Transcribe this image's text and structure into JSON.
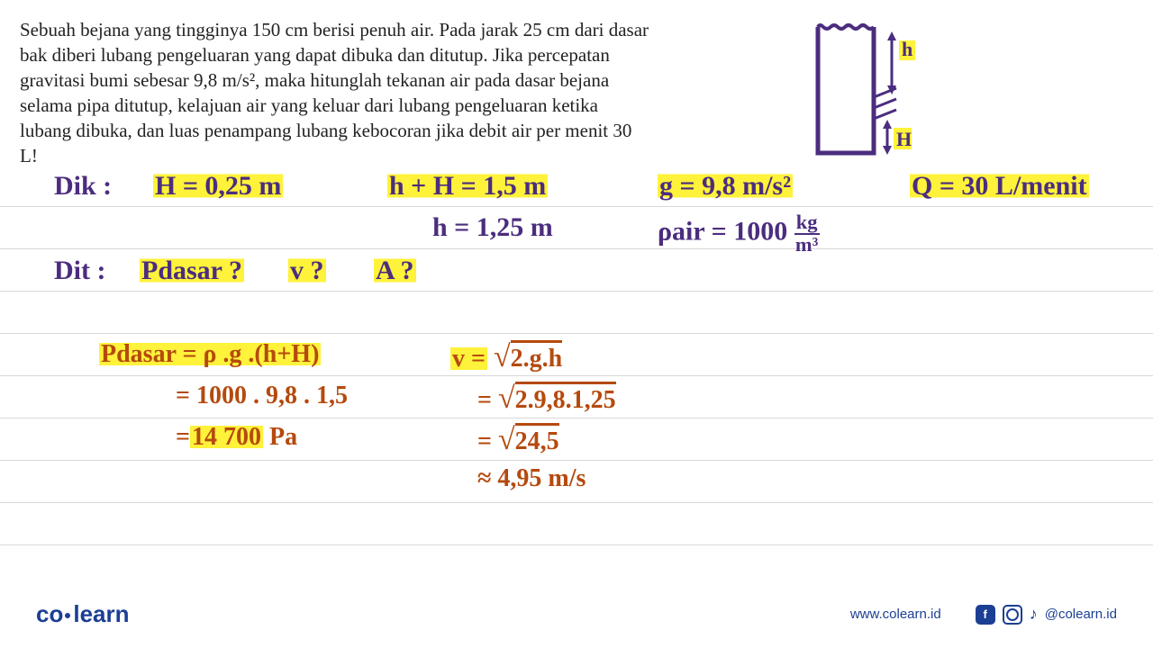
{
  "problem": "Sebuah bejana yang tingginya 150 cm berisi penuh air. Pada jarak 25 cm dari dasar bak diberi lubang pengeluaran yang dapat dibuka dan ditutup. Jika percepatan gravitasi bumi sebesar 9,8 m/s², maka hitunglah tekanan air pada dasar bejana selama pipa ditutup, kelajuan air yang keluar dari lubang pengeluaran ketika lubang dibuka, dan luas penampang lubang kebocoran jika debit air per menit 30 L!",
  "colors": {
    "purple": "#4b2d7f",
    "orange": "#b54a0e",
    "highlight": "#fef23a",
    "line": "#d8d8d8",
    "brand": "#1c3f94"
  },
  "dik": {
    "label": "Dik :",
    "H": "H = 0,25 m",
    "hH": "h + H = 1,5 m",
    "h": "h = 1,25 m",
    "g": "g = 9,8 m/s²",
    "rho": "ρair = 1000",
    "rho_unit_top": "kg",
    "rho_unit_bot": "m³",
    "Q": "Q = 30 L/menit"
  },
  "dit": {
    "label": "Dit :",
    "p": "Pdasar ?",
    "v": "v ?",
    "a": "A ?"
  },
  "calc_p": {
    "line1": "Pdasar = ρ .g .(h+H)",
    "line2": "= 1000 . 9,8 . 1,5",
    "line3_pre": "=",
    "line3": "14 700",
    "line3_post": " Pa"
  },
  "calc_v": {
    "line1_pre": "v =",
    "line1": "2.g.h",
    "line2_pre": "=",
    "line2": "2.9,8.1,25",
    "line3_pre": "=",
    "line3": "24,5",
    "line4": "≈ 4,95 m/s"
  },
  "diagram": {
    "h_label": "h",
    "H_label": "H"
  },
  "footer": {
    "logo_a": "co",
    "logo_b": "learn",
    "url": "www.colearn.id",
    "handle": "@colearn.id"
  },
  "ruled_line_gap": 47,
  "ruled_line_count": 9
}
